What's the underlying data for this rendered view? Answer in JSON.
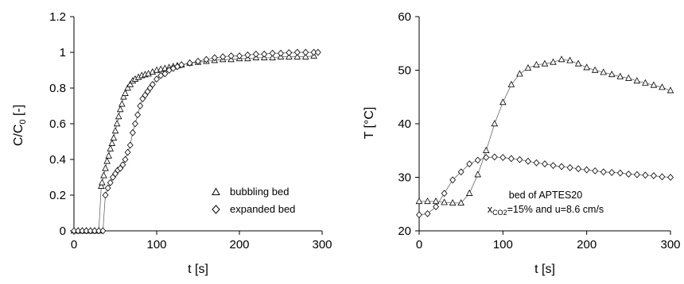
{
  "chart_data": [
    {
      "type": "scatter",
      "xlabel": "t [s]",
      "ylabel": "C/C",
      "ylabel_sub": "0",
      "ylabel_suffix": " [-]",
      "xlim": [
        0,
        300
      ],
      "ylim": [
        0,
        1.2
      ],
      "xticks": [
        0,
        100,
        200,
        300
      ],
      "yticks": [
        0,
        0.2,
        0.4,
        0.6,
        0.8,
        1,
        1.2
      ],
      "ytick_labels": [
        "0",
        "0.2",
        "0.4",
        "0.6",
        "0.8",
        "1",
        "1.2"
      ],
      "grid": false,
      "legend_position": "bottom-right",
      "legend": [
        "bubbling bed",
        "expanded bed"
      ],
      "series": [
        {
          "name": "bubbling bed",
          "marker": "triangle",
          "x": [
            0,
            5,
            10,
            15,
            20,
            25,
            30,
            33,
            34,
            36,
            38,
            40,
            42,
            44,
            46,
            48,
            50,
            52,
            54,
            56,
            58,
            60,
            62,
            65,
            68,
            71,
            74,
            78,
            82,
            86,
            90,
            95,
            100,
            105,
            110,
            115,
            120,
            125,
            130,
            140,
            150,
            160,
            170,
            180,
            190,
            200,
            210,
            220,
            230,
            240,
            250,
            260,
            270,
            280,
            290
          ],
          "y": [
            0,
            0,
            0,
            0,
            0,
            0,
            0,
            0.25,
            0.27,
            0.31,
            0.35,
            0.39,
            0.42,
            0.46,
            0.49,
            0.52,
            0.56,
            0.6,
            0.64,
            0.68,
            0.71,
            0.75,
            0.77,
            0.8,
            0.82,
            0.84,
            0.85,
            0.86,
            0.87,
            0.875,
            0.88,
            0.89,
            0.9,
            0.905,
            0.91,
            0.915,
            0.92,
            0.925,
            0.93,
            0.94,
            0.945,
            0.95,
            0.955,
            0.96,
            0.96,
            0.965,
            0.965,
            0.97,
            0.97,
            0.97,
            0.975,
            0.975,
            0.975,
            0.975,
            0.98
          ]
        },
        {
          "name": "expanded bed",
          "marker": "diamond",
          "x": [
            0,
            5,
            10,
            15,
            20,
            25,
            30,
            35,
            38,
            41,
            44,
            47,
            50,
            53,
            56,
            59,
            62,
            65,
            68,
            71,
            74,
            77,
            80,
            83,
            86,
            89,
            92,
            95,
            100,
            105,
            110,
            115,
            120,
            125,
            130,
            140,
            150,
            160,
            170,
            180,
            190,
            200,
            210,
            220,
            230,
            240,
            250,
            260,
            270,
            280,
            290,
            295
          ],
          "y": [
            0,
            0,
            0,
            0,
            0,
            0,
            0,
            0,
            0.2,
            0.24,
            0.27,
            0.3,
            0.32,
            0.34,
            0.35,
            0.37,
            0.4,
            0.44,
            0.48,
            0.55,
            0.6,
            0.65,
            0.7,
            0.74,
            0.76,
            0.78,
            0.8,
            0.82,
            0.85,
            0.87,
            0.88,
            0.9,
            0.91,
            0.92,
            0.93,
            0.94,
            0.95,
            0.96,
            0.97,
            0.975,
            0.98,
            0.98,
            0.985,
            0.99,
            0.99,
            0.995,
            0.995,
            0.998,
            1.0,
            1.0,
            1.0,
            1.0
          ]
        }
      ]
    },
    {
      "type": "line",
      "xlabel": "t [s]",
      "ylabel": "T [°C]",
      "xlim": [
        0,
        300
      ],
      "ylim": [
        20,
        60
      ],
      "xticks": [
        0,
        100,
        200,
        300
      ],
      "yticks": [
        20,
        30,
        40,
        50,
        60
      ],
      "ytick_labels": [
        "20",
        "30",
        "40",
        "50",
        "60"
      ],
      "grid": false,
      "annotation_line1": "bed of APTES20",
      "annotation_x": "x",
      "annotation_sub": "CO2",
      "annotation_rest": "=15% and u=8.6 cm/s",
      "series": [
        {
          "marker": "triangle",
          "x": [
            0,
            10,
            20,
            30,
            40,
            50,
            60,
            70,
            80,
            90,
            100,
            110,
            120,
            130,
            140,
            150,
            160,
            170,
            180,
            190,
            200,
            210,
            220,
            230,
            240,
            250,
            260,
            270,
            280,
            290,
            300
          ],
          "y": [
            25.5,
            25.5,
            25.5,
            25.3,
            25.2,
            25.2,
            27.0,
            30.5,
            35.0,
            40.0,
            44.0,
            47.3,
            49.3,
            50.4,
            51.0,
            51.2,
            51.5,
            52.0,
            51.8,
            51.2,
            50.5,
            50.0,
            49.6,
            49.2,
            48.8,
            48.5,
            48.0,
            47.6,
            47.2,
            46.8,
            46.2
          ]
        },
        {
          "marker": "diamond",
          "x": [
            0,
            10,
            20,
            30,
            40,
            50,
            60,
            70,
            80,
            90,
            100,
            110,
            120,
            130,
            140,
            150,
            160,
            170,
            180,
            190,
            200,
            210,
            220,
            230,
            240,
            250,
            260,
            270,
            280,
            290,
            300
          ],
          "y": [
            23.0,
            23.2,
            24.5,
            27.0,
            29.5,
            31.0,
            32.5,
            33.2,
            33.7,
            33.8,
            33.7,
            33.5,
            33.3,
            33.0,
            32.7,
            32.5,
            32.2,
            32.0,
            31.8,
            31.6,
            31.4,
            31.2,
            31.0,
            30.9,
            30.8,
            30.6,
            30.5,
            30.4,
            30.3,
            30.1,
            30.0
          ]
        }
      ]
    }
  ]
}
